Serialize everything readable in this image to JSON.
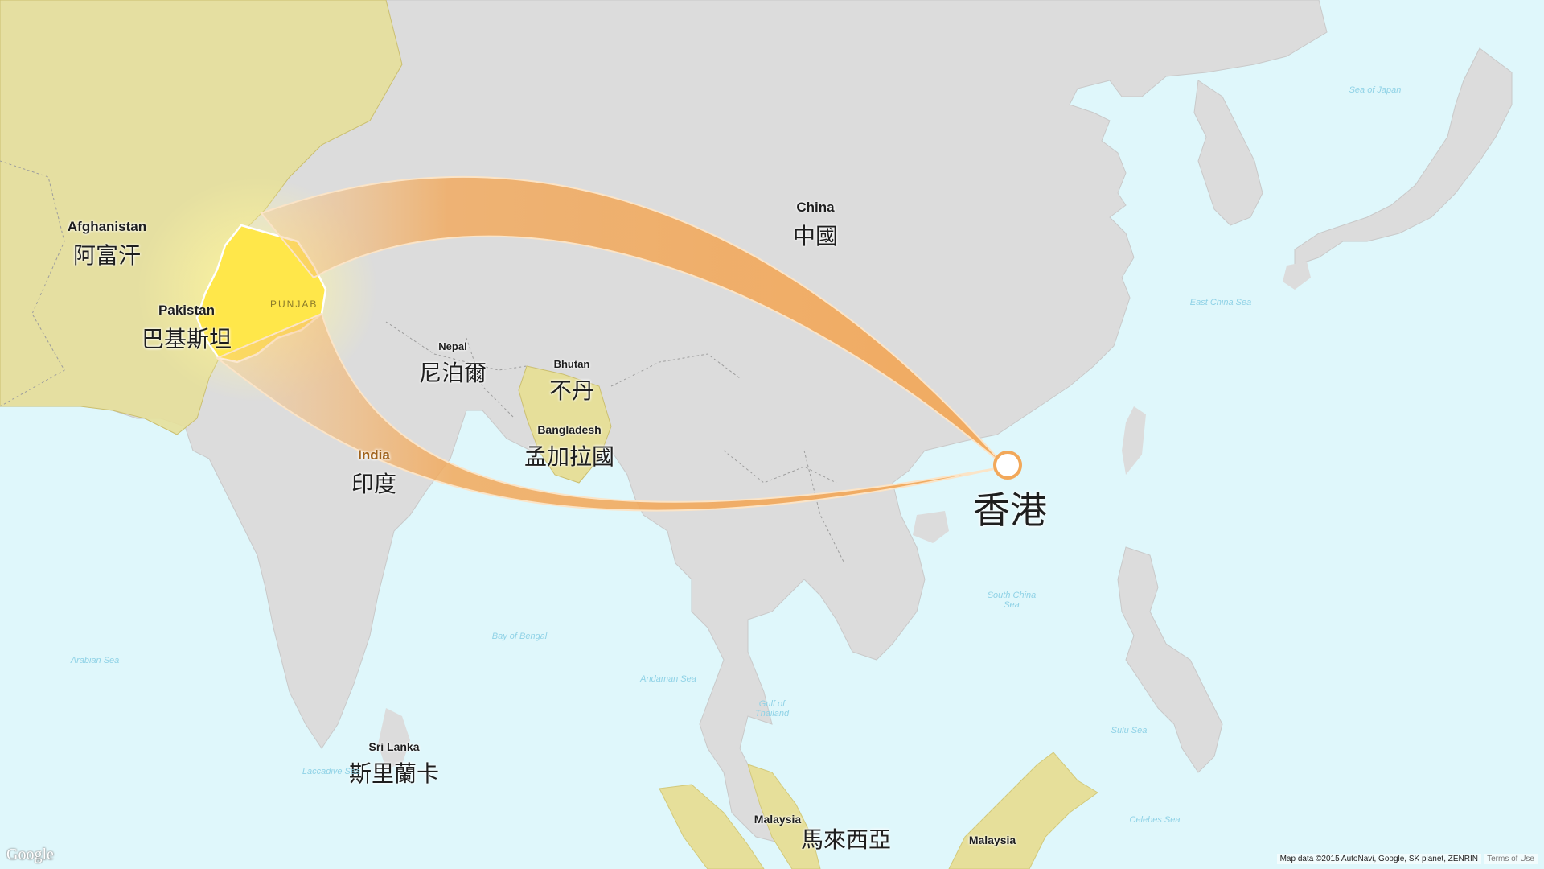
{
  "colors": {
    "sea": "#dff7fb",
    "land": "#dcdcdc",
    "highlight_land": "#e6df9a",
    "punjab": "#ffe74a",
    "arc": "#f2a85a",
    "origin_marker": "#f2a85a"
  },
  "countries": [
    {
      "en": "Afghanistan",
      "zh": "阿富汗"
    },
    {
      "en": "Pakistan",
      "zh": "巴基斯坦"
    },
    {
      "en": "China",
      "zh": "中國"
    },
    {
      "en": "Nepal",
      "zh": "尼泊爾"
    },
    {
      "en": "Bhutan",
      "zh": "不丹"
    },
    {
      "en": "Bangladesh",
      "zh": "孟加拉國"
    },
    {
      "en": "India",
      "zh": "印度"
    },
    {
      "en": "Sri Lanka",
      "zh": "斯里蘭卡"
    },
    {
      "en": "Malaysia",
      "zh": "馬來西亞"
    },
    {
      "en": "Malaysia",
      "zh": ""
    }
  ],
  "region_label": "PUNJAB",
  "destination": "香港",
  "seas": [
    "Sea of Japan",
    "East China Sea",
    "South China Sea",
    "Bay of Bengal",
    "Arabian Sea",
    "Andaman Sea",
    "Gulf of Thailand",
    "Sulu Sea",
    "Celebes Sea",
    "Laccadive Sea"
  ],
  "footer": {
    "logo": "Google",
    "attribution": "Map data ©2015 AutoNavi, Google, SK planet, ZENRIN",
    "terms": "Terms of Use"
  }
}
